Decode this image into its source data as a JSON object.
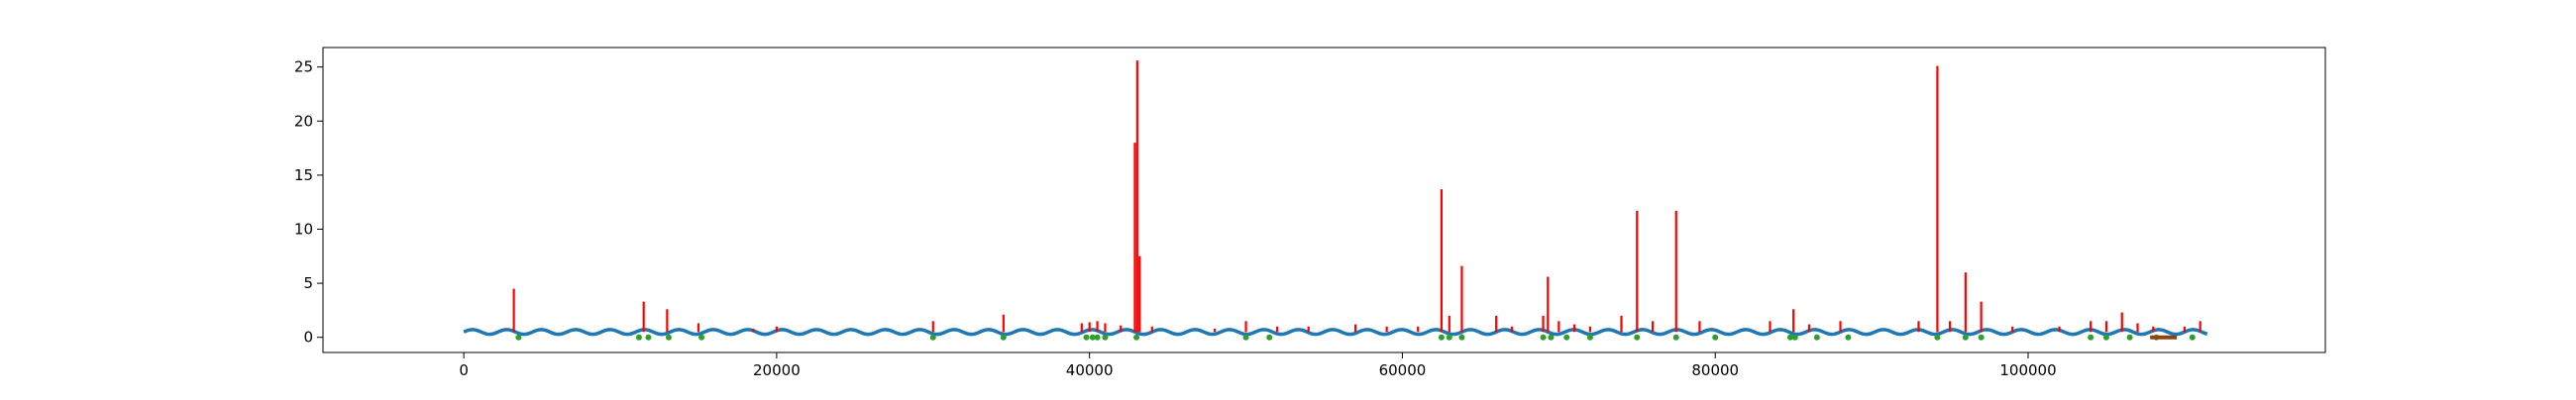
{
  "chart_data": {
    "type": "line",
    "title": "",
    "xlabel": "",
    "ylabel": "",
    "xlim": [
      -9000,
      119000
    ],
    "ylim": [
      -1.4,
      26.8
    ],
    "x_ticks": [
      0,
      20000,
      40000,
      60000,
      80000,
      100000
    ],
    "x_tick_labels": [
      "0",
      "20000",
      "40000",
      "60000",
      "80000",
      "100000"
    ],
    "y_ticks": [
      0,
      5,
      10,
      15,
      20,
      25
    ],
    "y_tick_labels": [
      "0",
      "5",
      "10",
      "15",
      "20",
      "25"
    ],
    "grid": false,
    "legend": "none",
    "baseline": {
      "color": "#1f77b4",
      "x_start": 0,
      "x_end": 111500,
      "mean": 0.5,
      "amplitude": 0.22,
      "period": 2200
    },
    "series": [
      {
        "color": "#ff0000",
        "spikes": [
          [
            3200,
            4.5
          ],
          [
            11500,
            3.3
          ],
          [
            13000,
            2.6
          ],
          [
            15000,
            1.3
          ],
          [
            18500,
            0.8
          ],
          [
            20000,
            1.0
          ],
          [
            30000,
            1.5
          ],
          [
            34500,
            2.1
          ],
          [
            39500,
            1.3
          ],
          [
            40000,
            1.4
          ],
          [
            40500,
            1.5
          ],
          [
            41000,
            1.3
          ],
          [
            42000,
            1.1
          ],
          [
            42900,
            18.0
          ],
          [
            43050,
            25.6
          ],
          [
            43200,
            7.5
          ],
          [
            44000,
            1.0
          ],
          [
            48000,
            0.8
          ],
          [
            50000,
            1.5
          ],
          [
            52000,
            1.0
          ],
          [
            54000,
            1.0
          ],
          [
            57000,
            1.2
          ],
          [
            59000,
            1.0
          ],
          [
            61000,
            1.0
          ],
          [
            62500,
            13.7
          ],
          [
            63000,
            2.0
          ],
          [
            63800,
            6.6
          ],
          [
            66000,
            2.0
          ],
          [
            67000,
            1.0
          ],
          [
            69000,
            2.0
          ],
          [
            69300,
            5.6
          ],
          [
            70000,
            1.5
          ],
          [
            71000,
            1.2
          ],
          [
            72000,
            1.0
          ],
          [
            74000,
            2.0
          ],
          [
            75000,
            11.7
          ],
          [
            76000,
            1.5
          ],
          [
            77500,
            11.7
          ],
          [
            79000,
            1.5
          ],
          [
            83500,
            1.5
          ],
          [
            85000,
            2.6
          ],
          [
            86000,
            1.2
          ],
          [
            88000,
            1.5
          ],
          [
            93000,
            1.5
          ],
          [
            94200,
            25.1
          ],
          [
            95000,
            1.5
          ],
          [
            96000,
            6.0
          ],
          [
            97000,
            3.3
          ],
          [
            99000,
            1.0
          ],
          [
            102000,
            1.0
          ],
          [
            104000,
            1.5
          ],
          [
            105000,
            1.5
          ],
          [
            106000,
            2.3
          ],
          [
            107000,
            1.3
          ],
          [
            108000,
            1.0
          ],
          [
            110000,
            1.0
          ],
          [
            111000,
            1.5
          ]
        ]
      },
      {
        "color": "#2ca02c",
        "markers_x": [
          3500,
          11200,
          11800,
          13100,
          15200,
          30000,
          34500,
          39800,
          40200,
          40500,
          41000,
          43000,
          50000,
          51500,
          62500,
          63000,
          63800,
          69000,
          69500,
          70500,
          72000,
          75000,
          77500,
          80000,
          84800,
          85100,
          86500,
          88500,
          94200,
          96000,
          97000,
          104000,
          105000,
          106500,
          108200,
          110500
        ],
        "markers_y": 0
      },
      {
        "color": "#8b4513",
        "segments": [
          [
            107800,
            109500
          ]
        ],
        "y": 0
      }
    ]
  }
}
